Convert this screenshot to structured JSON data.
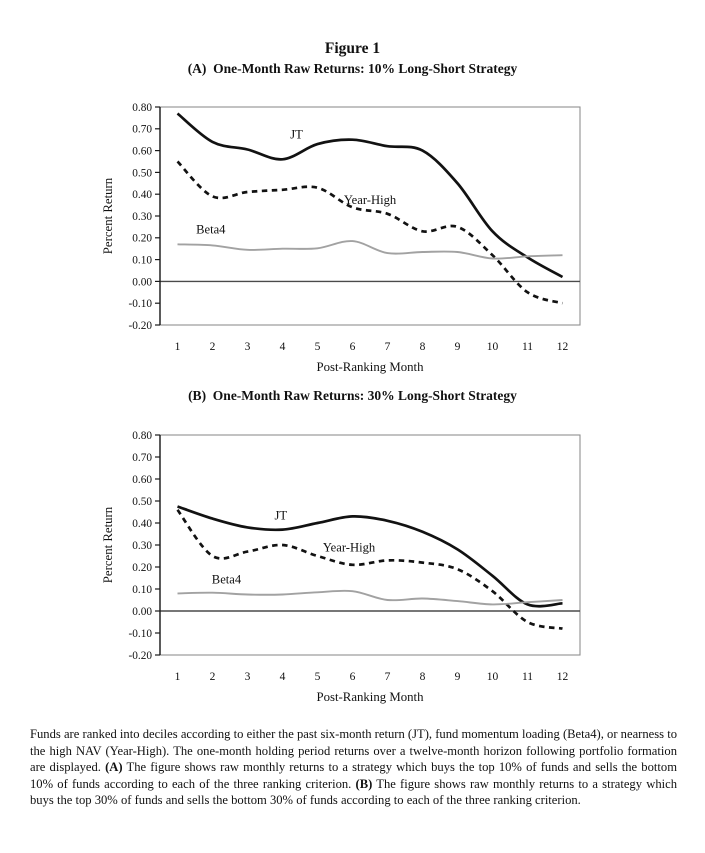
{
  "page": {
    "title": "Figure 1",
    "panel_a_title": "(A)  One-Month Raw Returns: 10% Long-Short Strategy",
    "panel_b_title": "(B)  One-Month Raw Returns: 30% Long-Short Strategy"
  },
  "caption": {
    "part1": "Funds are ranked into deciles according to either the past six-month return (JT), fund momentum loading (Beta4), or nearness to the high NAV (Year-High). The one-month holding period returns over a twelve-month horizon following portfolio formation are displayed. ",
    "bold_a": "(A)",
    "part2": " The figure shows raw monthly returns to a strategy which buys the top 10% of funds and sells the bottom 10% of funds according to each of the three ranking criterion. ",
    "bold_b": "(B)",
    "part3": " The figure shows raw monthly returns to a strategy which buys the top 30% of funds and sells the bottom 30% of funds according to each of the three ranking criterion."
  },
  "chart_data": [
    {
      "id": "panel-a",
      "type": "line",
      "title": "(A) One-Month Raw Returns: 10% Long-Short Strategy",
      "xlabel": "Post-Ranking Month",
      "ylabel": "Percent Return",
      "x": [
        1,
        2,
        3,
        4,
        5,
        6,
        7,
        8,
        9,
        10,
        11,
        12
      ],
      "xlim": [
        0.5,
        12.5
      ],
      "ylim": [
        -0.2,
        0.8
      ],
      "yticks": [
        0.8,
        0.7,
        0.6,
        0.5,
        0.4,
        0.3,
        0.2,
        0.1,
        0.0,
        -0.1,
        -0.2
      ],
      "ytick_labels": [
        "0.80",
        "0.70",
        "0.60",
        "0.50",
        "0.40",
        "0.30",
        "0.20",
        "0.10",
        "0.00",
        "-0.10",
        "-0.20"
      ],
      "grid": false,
      "zero_line": true,
      "legend_position": "inline-labels",
      "frame_color": "#909090",
      "axis_color": "#1a1a1a",
      "zero_line_color": "#4a4a4a",
      "series": [
        {
          "name": "JT",
          "style": "solid",
          "color": "#121212",
          "width": 2.7,
          "values": [
            0.77,
            0.64,
            0.605,
            0.56,
            0.63,
            0.65,
            0.62,
            0.6,
            0.45,
            0.23,
            0.11,
            0.02
          ],
          "label_pos": {
            "x": 4.4,
            "y": 0.675
          }
        },
        {
          "name": "Year-High",
          "style": "dashed",
          "color": "#121212",
          "width": 2.7,
          "values": [
            0.55,
            0.39,
            0.41,
            0.42,
            0.43,
            0.34,
            0.31,
            0.23,
            0.25,
            0.12,
            -0.05,
            -0.1
          ],
          "label_pos": {
            "x": 6.5,
            "y": 0.375
          }
        },
        {
          "name": "Beta4",
          "style": "solid",
          "color": "#a2a2a2",
          "width": 1.9,
          "values": [
            0.17,
            0.165,
            0.145,
            0.15,
            0.152,
            0.185,
            0.13,
            0.135,
            0.135,
            0.105,
            0.115,
            0.12
          ],
          "label_pos": {
            "x": 1.95,
            "y": 0.24
          }
        }
      ]
    },
    {
      "id": "panel-b",
      "type": "line",
      "title": "(B) One-Month Raw Returns: 30% Long-Short Strategy",
      "xlabel": "Post-Ranking Month",
      "ylabel": "Percent Return",
      "x": [
        1,
        2,
        3,
        4,
        5,
        6,
        7,
        8,
        9,
        10,
        11,
        12
      ],
      "xlim": [
        0.5,
        12.5
      ],
      "ylim": [
        -0.2,
        0.8
      ],
      "yticks": [
        0.8,
        0.7,
        0.6,
        0.5,
        0.4,
        0.3,
        0.2,
        0.1,
        0.0,
        -0.1,
        -0.2
      ],
      "ytick_labels": [
        "0.80",
        "0.70",
        "0.60",
        "0.50",
        "0.40",
        "0.30",
        "0.20",
        "0.10",
        "0.00",
        "-0.10",
        "-0.20"
      ],
      "grid": false,
      "zero_line": true,
      "legend_position": "inline-labels",
      "frame_color": "#909090",
      "axis_color": "#1a1a1a",
      "zero_line_color": "#4a4a4a",
      "series": [
        {
          "name": "JT",
          "style": "solid",
          "color": "#121212",
          "width": 2.7,
          "values": [
            0.475,
            0.42,
            0.38,
            0.37,
            0.4,
            0.43,
            0.41,
            0.36,
            0.28,
            0.16,
            0.03,
            0.035
          ],
          "label_pos": {
            "x": 3.95,
            "y": 0.435
          }
        },
        {
          "name": "Year-High",
          "style": "dashed",
          "color": "#121212",
          "width": 2.7,
          "values": [
            0.46,
            0.25,
            0.27,
            0.3,
            0.25,
            0.21,
            0.23,
            0.22,
            0.19,
            0.09,
            -0.05,
            -0.08
          ],
          "label_pos": {
            "x": 5.9,
            "y": 0.29
          }
        },
        {
          "name": "Beta4",
          "style": "solid",
          "color": "#a2a2a2",
          "width": 1.9,
          "values": [
            0.08,
            0.083,
            0.075,
            0.075,
            0.085,
            0.09,
            0.05,
            0.057,
            0.045,
            0.03,
            0.04,
            0.05
          ],
          "label_pos": {
            "x": 2.4,
            "y": 0.145
          }
        }
      ]
    }
  ]
}
